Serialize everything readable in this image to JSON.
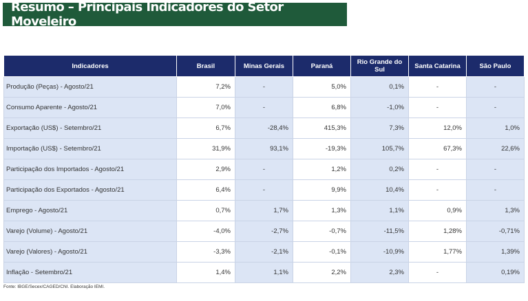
{
  "title": "Resumo – Principais Indicadores do Setor Moveleiro",
  "colors": {
    "title_bg": "#1f5a3a",
    "header_bg": "#1c2b6b",
    "row_shade": "#dce5f5"
  },
  "table": {
    "headers": [
      "Indicadores",
      "Brasil",
      "Minas Gerais",
      "Paraná",
      "Rio Grande do Sul",
      "Santa Catarina",
      "São Paulo"
    ],
    "rows": [
      [
        "Produção (Peças) - Agosto/21",
        "7,2%",
        "-",
        "5,0%",
        "0,1%",
        "-",
        "-"
      ],
      [
        "Consumo Aparente - Agosto/21",
        "7,0%",
        "-",
        "6,8%",
        "-1,0%",
        "-",
        "-"
      ],
      [
        "Exportação (US$) - Setembro/21",
        "6,7%",
        "-28,4%",
        "415,3%",
        "7,3%",
        "12,0%",
        "1,0%"
      ],
      [
        "Importação (US$) - Setembro/21",
        "31,9%",
        "93,1%",
        "-19,3%",
        "105,7%",
        "67,3%",
        "22,6%"
      ],
      [
        "Participação dos Importados - Agosto/21",
        "2,9%",
        "-",
        "1,2%",
        "0,2%",
        "-",
        "-"
      ],
      [
        "Participação dos Exportados - Agosto/21",
        "6,4%",
        "-",
        "9,9%",
        "10,4%",
        "-",
        "-"
      ],
      [
        "Emprego - Agosto/21",
        "0,7%",
        "1,7%",
        "1,3%",
        "1,1%",
        "0,9%",
        "1,3%"
      ],
      [
        "Varejo (Volume) - Agosto/21",
        "-4,0%",
        "-2,7%",
        "-0,7%",
        "-11,5%",
        "1,28%",
        "-0,71%"
      ],
      [
        "Varejo (Valores) - Agosto/21",
        "-3,3%",
        "-2,1%",
        "-0,1%",
        "-10,9%",
        "1,77%",
        "1,39%"
      ],
      [
        "Inflação - Setembro/21",
        "1,4%",
        "1,1%",
        "2,2%",
        "2,3%",
        "-",
        "0,19%"
      ]
    ]
  },
  "source": "Fonte: IBGE/Secex/CAGED/CNI. Elaboração IEMI."
}
